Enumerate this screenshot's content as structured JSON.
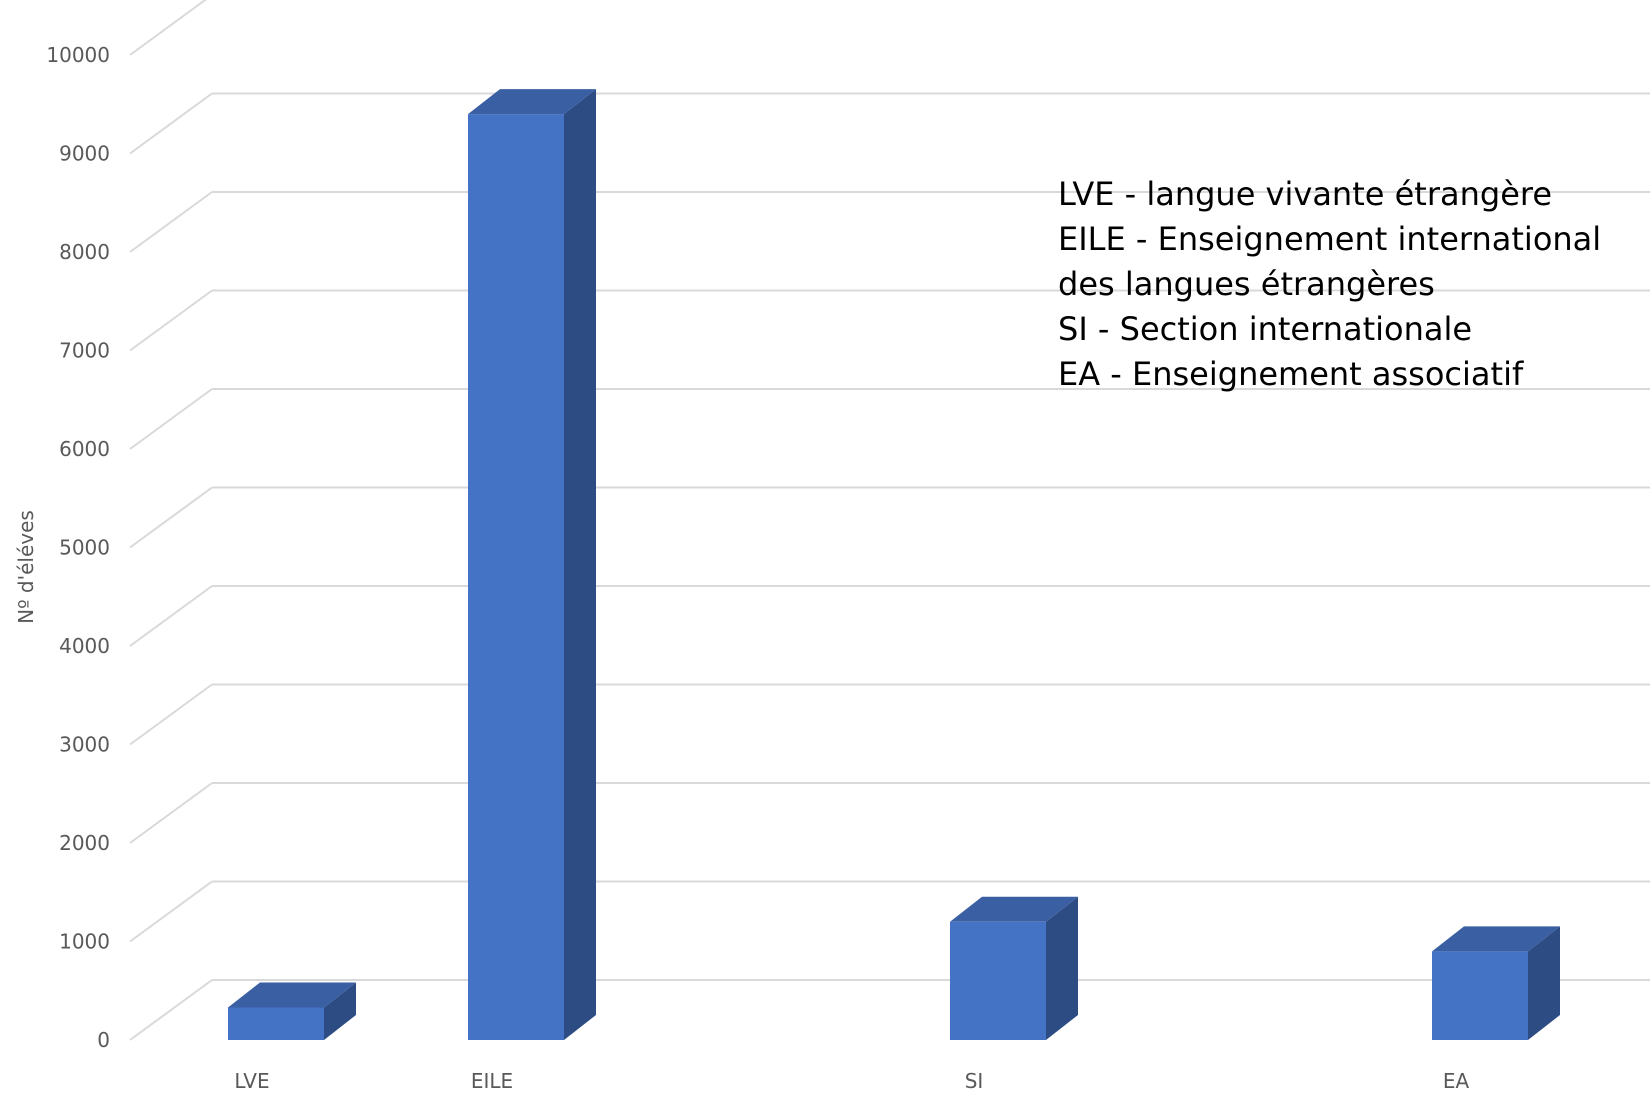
{
  "chart_data": {
    "type": "bar",
    "categories": [
      "LVE",
      "EILE",
      "SI",
      "EA"
    ],
    "values": [
      330,
      9400,
      1200,
      900
    ],
    "ylabel": "Nº d'éléves",
    "ylim": [
      0,
      10000
    ],
    "yticks": [
      0,
      1000,
      2000,
      3000,
      4000,
      5000,
      6000,
      7000,
      8000,
      9000,
      10000
    ],
    "grid": true,
    "bar_style": "3d-column",
    "colors": {
      "front": "#4472C4",
      "side": "#2E4C84",
      "top": "#3A5FA3",
      "grid": "#D9D9D9",
      "text": "#595959"
    },
    "annotations": [
      "LVE - langue vivante étrangère",
      "EILE - Enseignement international",
      "des langues étrangères",
      "SI - Section internationale",
      "EA - Enseignement associatif"
    ]
  }
}
